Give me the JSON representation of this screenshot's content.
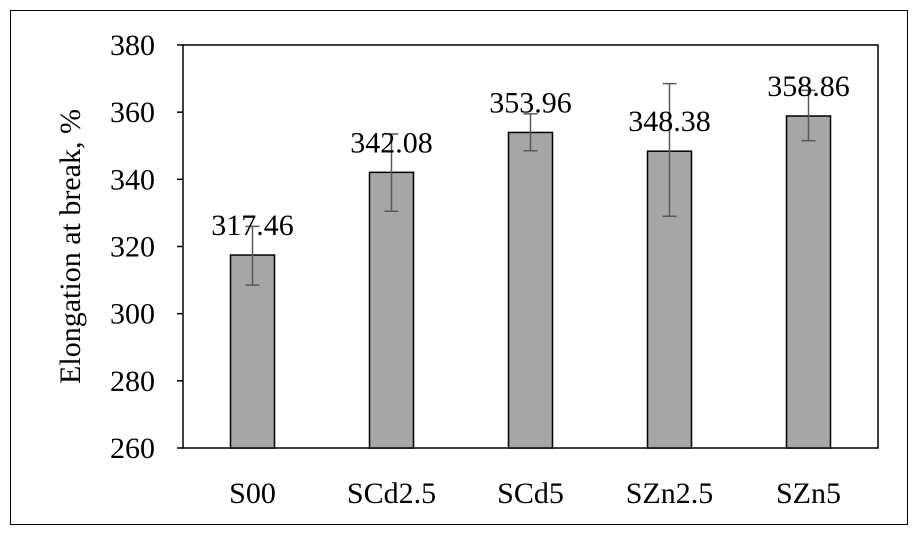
{
  "chart_data": {
    "type": "bar",
    "title": "",
    "xlabel": "",
    "ylabel": "Elongation at break, %",
    "ylim": [
      260,
      380
    ],
    "yticks": [
      260,
      280,
      300,
      320,
      340,
      360,
      380
    ],
    "grid": false,
    "legend": "none",
    "categories": [
      "S00",
      "SCd2.5",
      "SCd5",
      "SZn2.5",
      "SZn5"
    ],
    "values": [
      317.46,
      342.08,
      353.96,
      348.38,
      358.86
    ],
    "data_labels": [
      "317.46",
      "342.08",
      "353.96",
      "348.38",
      "358.86"
    ],
    "error": [
      [
        308.5,
        326.0
      ],
      [
        330.5,
        353.5
      ],
      [
        348.5,
        359.5
      ],
      [
        329.0,
        368.5
      ],
      [
        351.5,
        366.5
      ]
    ],
    "colors": {
      "bar": "#a6a6a6",
      "bar_border": "#000000",
      "error_bar": "#595959"
    }
  }
}
